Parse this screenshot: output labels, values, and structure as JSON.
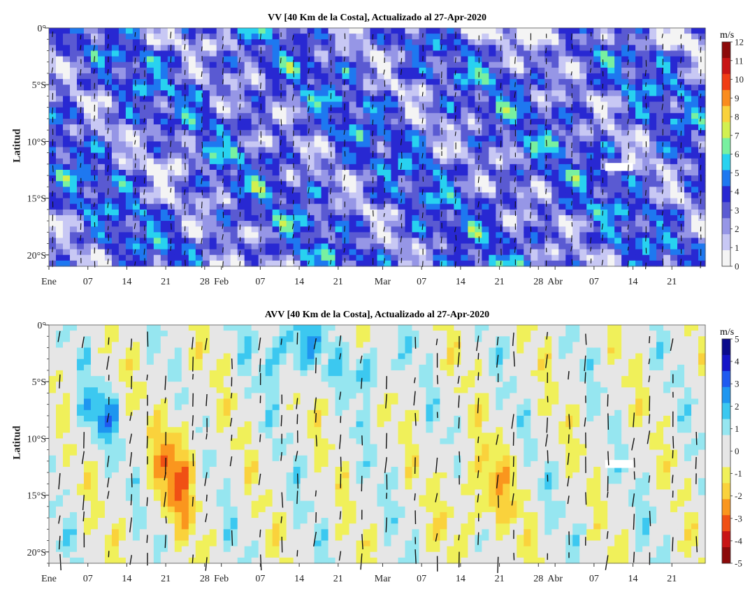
{
  "chart_data": [
    {
      "type": "heatmap",
      "title": "VV [40 Km de la Costa], Actualizado al 27-Apr-2020",
      "ylabel": "Latitud",
      "y_ticks": [
        "0°",
        "5°S",
        "10°S",
        "15°S",
        "20°S"
      ],
      "y_tick_values": [
        0,
        -5,
        -10,
        -15,
        -20
      ],
      "ylim": [
        -21,
        0
      ],
      "x_ticks": [
        "Ene",
        "07",
        "14",
        "21",
        "28",
        "Feb",
        "07",
        "14",
        "21",
        "Mar",
        "07",
        "14",
        "21",
        "28",
        "Abr",
        "07",
        "14",
        "21"
      ],
      "x_tick_days": [
        0,
        7,
        14,
        21,
        28,
        31,
        38,
        45,
        52,
        60,
        67,
        74,
        81,
        88,
        91,
        98,
        105,
        112
      ],
      "xlim_days": [
        0,
        118
      ],
      "colorbar": {
        "unit": "m/s",
        "ticks": [
          "0",
          "1",
          "2",
          "3",
          "4",
          "5",
          "6",
          "7",
          "8",
          "9",
          "10",
          "11",
          "12"
        ],
        "range": [
          0,
          12
        ],
        "colors": [
          "#f4f4f4",
          "#c8c8f4",
          "#9696e6",
          "#5a5ad2",
          "#2828d2",
          "#1e78f0",
          "#28d2f0",
          "#78f0a0",
          "#d2f050",
          "#fad23c",
          "#fa8c1e",
          "#f03c14",
          "#c81414",
          "#8c0a0a"
        ]
      },
      "gap": {
        "day_start": 100,
        "day_end": 105,
        "lat_start": -12.6,
        "lat_end": -11.9
      }
    },
    {
      "type": "heatmap",
      "title": "AVV [40 Km de la Costa], Actualizado al 27-Apr-2020",
      "ylabel": "Latitud",
      "y_ticks": [
        "0°",
        "5°S",
        "10°S",
        "15°S",
        "20°S"
      ],
      "y_tick_values": [
        0,
        -5,
        -10,
        -15,
        -20
      ],
      "ylim": [
        -21,
        0
      ],
      "x_ticks": [
        "Ene",
        "07",
        "14",
        "21",
        "28",
        "Feb",
        "07",
        "14",
        "21",
        "Mar",
        "07",
        "14",
        "21",
        "28",
        "Abr",
        "07",
        "14",
        "21"
      ],
      "x_tick_days": [
        0,
        7,
        14,
        21,
        28,
        31,
        38,
        45,
        52,
        60,
        67,
        74,
        81,
        88,
        91,
        98,
        105,
        112
      ],
      "xlim_days": [
        0,
        118
      ],
      "colorbar": {
        "unit": "m/s",
        "ticks": [
          "5",
          "4",
          "3",
          "2",
          "1",
          "0",
          "-1",
          "-2",
          "-3",
          "-4",
          "-5"
        ],
        "range": [
          -5,
          5
        ],
        "colors": [
          "#0a0a8c",
          "#1414c8",
          "#1e5af0",
          "#1e96f0",
          "#3cc8f0",
          "#96e6f0",
          "#e6e6e6",
          "#e6e6e6",
          "#f0f05a",
          "#fad23c",
          "#fa961e",
          "#f05014",
          "#c81414",
          "#8c0a0a"
        ]
      },
      "gap": {
        "day_start": 100,
        "day_end": 105,
        "lat_start": -12.6,
        "lat_end": -11.9
      }
    }
  ]
}
